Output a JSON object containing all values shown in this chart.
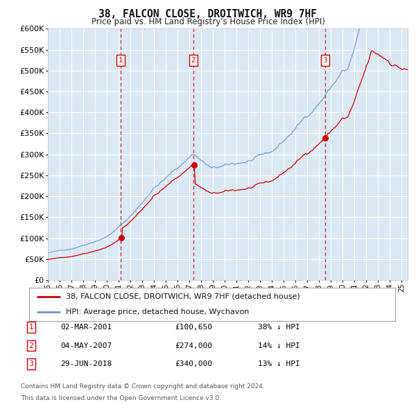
{
  "title": "38, FALCON CLOSE, DROITWICH, WR9 7HF",
  "subtitle": "Price paid vs. HM Land Registry's House Price Index (HPI)",
  "legend_line1": "38, FALCON CLOSE, DROITWICH, WR9 7HF (detached house)",
  "legend_line2": "HPI: Average price, detached house, Wychavon",
  "footnote1": "Contains HM Land Registry data © Crown copyright and database right 2024.",
  "footnote2": "This data is licensed under the Open Government Licence v3.0.",
  "transactions": [
    {
      "num": 1,
      "date": "02-MAR-2001",
      "price": 100650,
      "pct": "38%",
      "dir": "↓"
    },
    {
      "num": 2,
      "date": "04-MAY-2007",
      "price": 274000,
      "pct": "14%",
      "dir": "↓"
    },
    {
      "num": 3,
      "date": "29-JUN-2018",
      "price": 340000,
      "pct": "13%",
      "dir": "↓"
    }
  ],
  "transaction_dates_decimal": [
    2001.17,
    2007.34,
    2018.5
  ],
  "transaction_prices": [
    100650,
    274000,
    340000
  ],
  "background_color": "#dce9f5",
  "red_line_color": "#cc0000",
  "blue_line_color": "#6699cc",
  "grid_color": "#ffffff",
  "dashed_vline_color": "#cc0000",
  "ylim": [
    0,
    600000
  ],
  "yticks": [
    0,
    50000,
    100000,
    150000,
    200000,
    250000,
    300000,
    350000,
    400000,
    450000,
    500000,
    550000,
    600000
  ],
  "xstart": 1995.0,
  "xend": 2025.5,
  "xtick_years": [
    1995,
    1996,
    1997,
    1998,
    1999,
    2000,
    2001,
    2002,
    2003,
    2004,
    2005,
    2006,
    2007,
    2008,
    2009,
    2010,
    2011,
    2012,
    2013,
    2014,
    2015,
    2016,
    2017,
    2018,
    2019,
    2020,
    2021,
    2022,
    2023,
    2024,
    2025
  ]
}
